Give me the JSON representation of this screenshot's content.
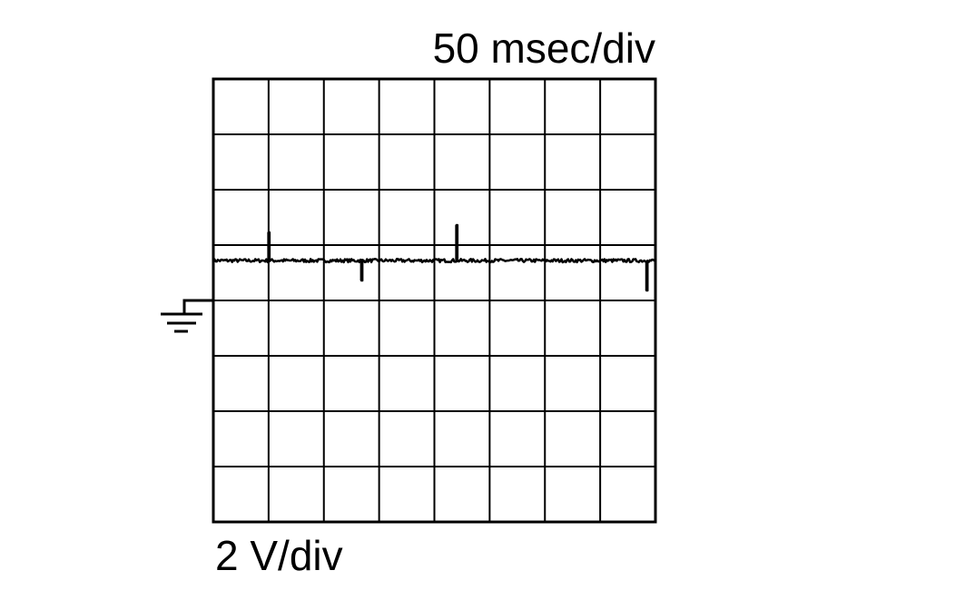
{
  "chart_data": {
    "type": "line",
    "time_scale_label": "50 msec/div",
    "voltage_scale_label": "2 V/div",
    "x_unit": "ms",
    "y_unit": "V",
    "xlim": [
      0,
      400
    ],
    "ylim": [
      -8,
      8
    ],
    "divisions": {
      "x": 8,
      "y": 8
    },
    "grid": true,
    "ground_marker": {
      "icon": "ground-icon",
      "level_v": 0
    },
    "baseline_v": 1.44,
    "spikes": [
      {
        "t": 50,
        "v": 2.46
      },
      {
        "t": 134,
        "v": 0.72
      },
      {
        "t": 220,
        "v": 2.72
      },
      {
        "t": 392,
        "v": 0.36
      }
    ],
    "line_color": "#000000"
  }
}
